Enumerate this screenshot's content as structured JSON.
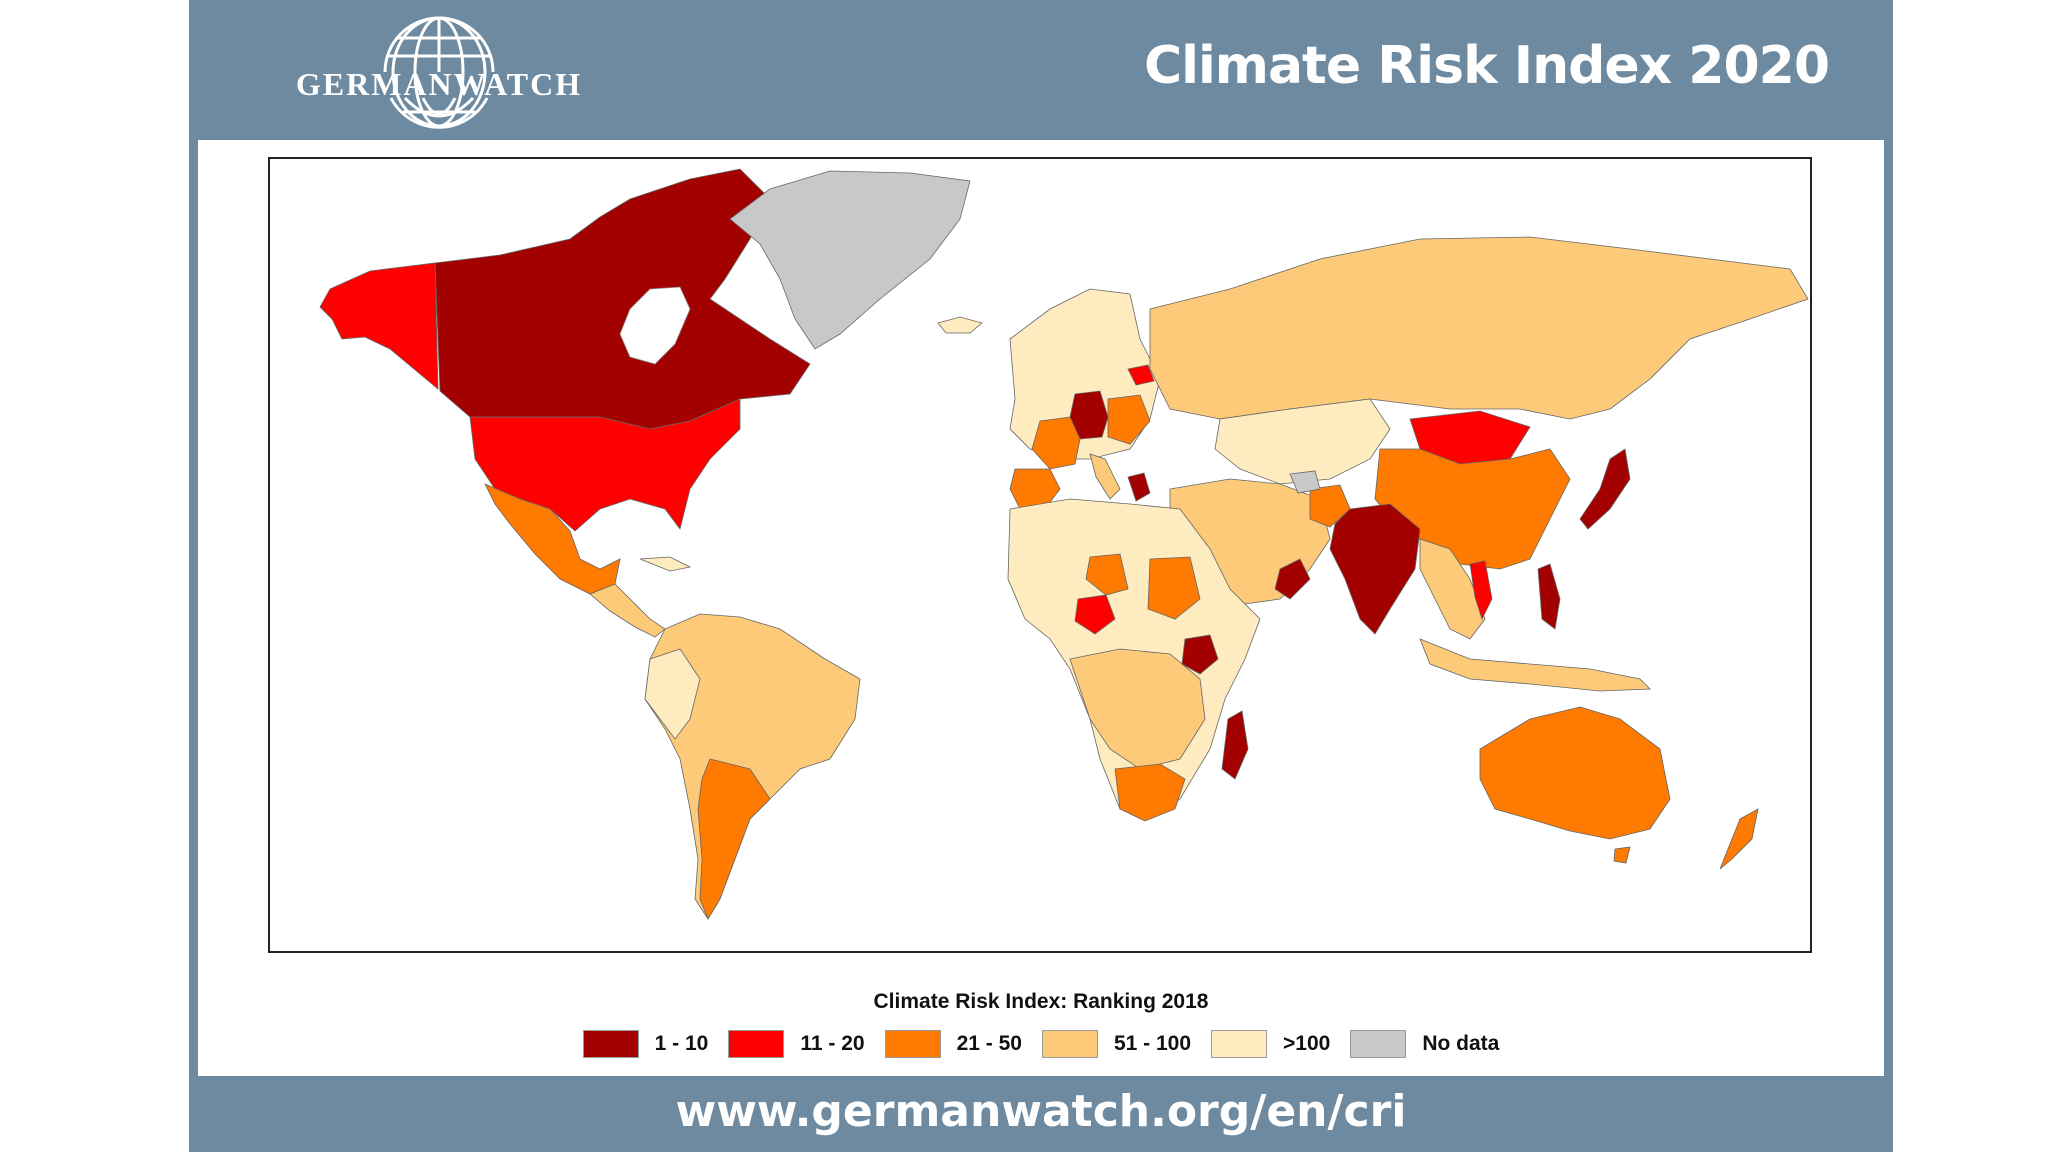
{
  "header": {
    "logo_text": "GERMANWATCH",
    "logo_icon": "globe-icon",
    "title": "Climate Risk Index 2020"
  },
  "legend": {
    "title": "Climate Risk Index: Ranking 2018",
    "items": [
      {
        "label": "1 - 10",
        "color": "#a30000"
      },
      {
        "label": "11 - 20",
        "color": "#ff0000"
      },
      {
        "label": "21 - 50",
        "color": "#ff7a00"
      },
      {
        "label": "51 - 100",
        "color": "#fcca79"
      },
      {
        "label": ">100",
        "color": "#feebbf"
      },
      {
        "label": "No data",
        "color": "#c8c8c8"
      }
    ]
  },
  "footer": {
    "url": "www.germanwatch.org/en/cri"
  },
  "colors": {
    "frame_bg": "#6d8aa0",
    "panel_bg": "#ffffff"
  }
}
